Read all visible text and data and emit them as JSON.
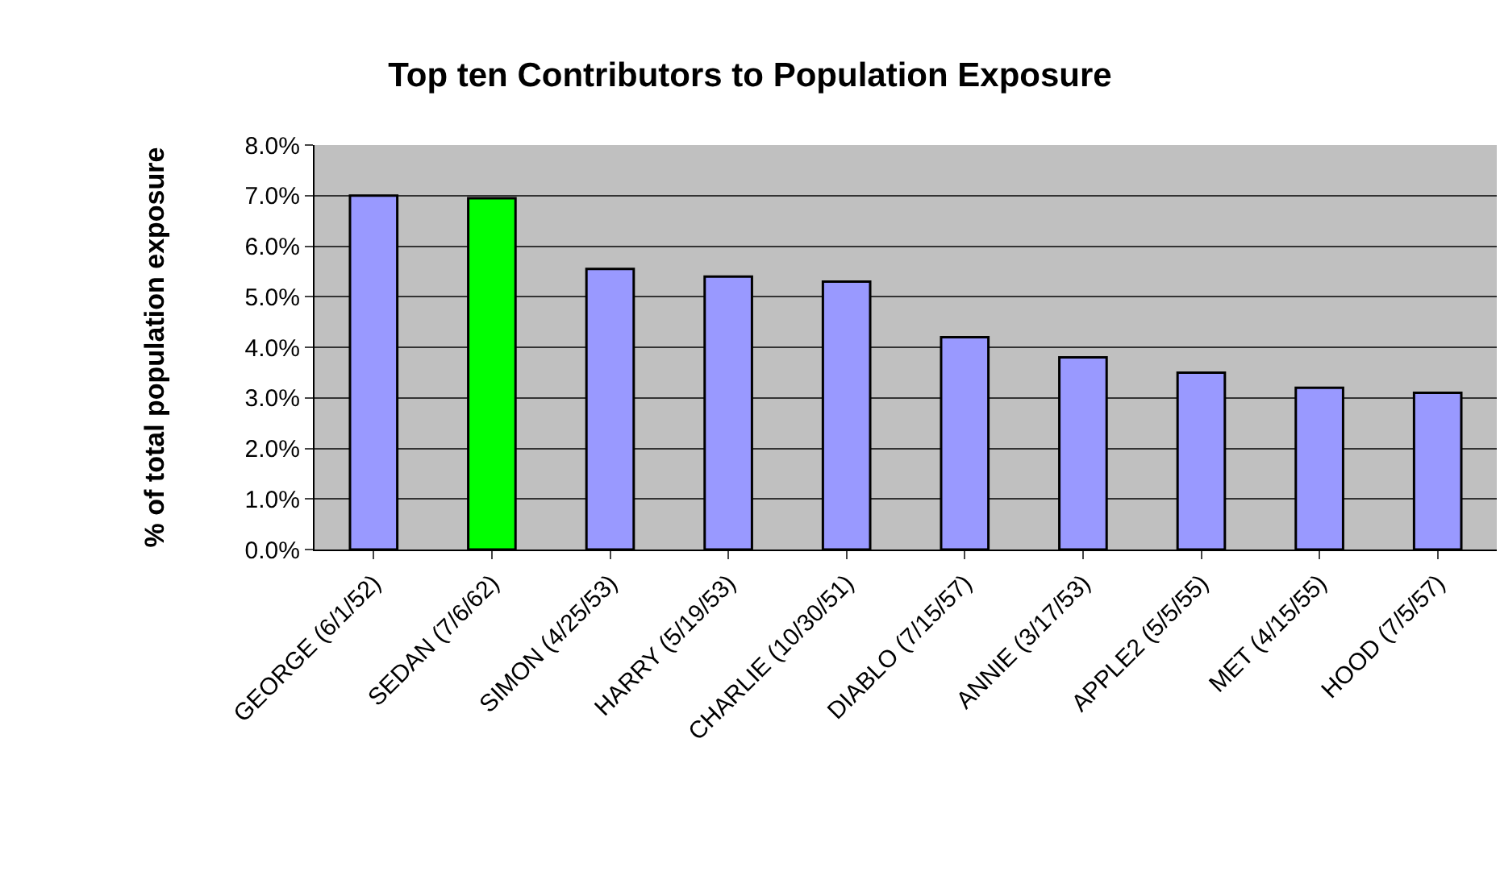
{
  "chart_data": {
    "type": "bar",
    "title": "Top ten Contributors to Population Exposure",
    "ylabel": "% of total population exposure",
    "categories": [
      "GEORGE (6/1/52)",
      "SEDAN (7/6/62)",
      "SIMON (4/25/53)",
      "HARRY (5/19/53)",
      "CHARLIE (10/30/51)",
      "DIABLO (7/15/57)",
      "ANNIE (3/17/53)",
      "APPLE2 (5/5/55)",
      "MET (4/15/55)",
      "HOOD (7/5/57)"
    ],
    "values": [
      7.0,
      6.95,
      5.55,
      5.4,
      5.3,
      4.2,
      3.8,
      3.5,
      3.2,
      3.1
    ],
    "colors": [
      "#9999ff",
      "#00ff00",
      "#9999ff",
      "#9999ff",
      "#9999ff",
      "#9999ff",
      "#9999ff",
      "#9999ff",
      "#9999ff",
      "#9999ff"
    ],
    "ylim": [
      0,
      8
    ],
    "yticks": [
      {
        "value": 0,
        "label": "0.0%"
      },
      {
        "value": 1,
        "label": "1.0%"
      },
      {
        "value": 2,
        "label": "2.0%"
      },
      {
        "value": 3,
        "label": "3.0%"
      },
      {
        "value": 4,
        "label": "4.0%"
      },
      {
        "value": 5,
        "label": "5.0%"
      },
      {
        "value": 6,
        "label": "6.0%"
      },
      {
        "value": 7,
        "label": "7.0%"
      },
      {
        "value": 8,
        "label": "8.0%"
      }
    ],
    "grid": true
  }
}
